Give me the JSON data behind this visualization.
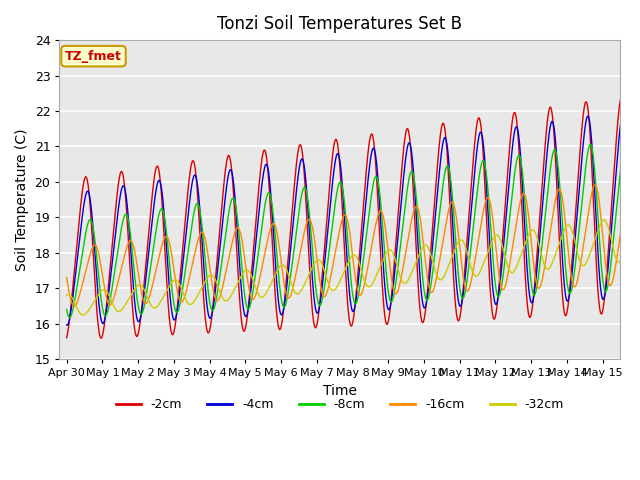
{
  "title": "Tonzi Soil Temperatures Set B",
  "xlabel": "Time",
  "ylabel": "Soil Temperature (C)",
  "ylim": [
    15.0,
    24.0
  ],
  "yticks": [
    15.0,
    16.0,
    17.0,
    18.0,
    19.0,
    20.0,
    21.0,
    22.0,
    23.0,
    24.0
  ],
  "bg_color": "#dcdcdc",
  "plot_bg": "#e8e8e8",
  "annotation_text": "TZ_fmet",
  "annotation_bg": "#ffffcc",
  "annotation_border": "#cc9900",
  "lines": [
    {
      "label": "-2cm",
      "color": "#dd0000",
      "phase": 0.0,
      "base_amp": 2.2,
      "amp_growth": 0.05,
      "base_mean": 17.8,
      "mean_growth": 0.1
    },
    {
      "label": "-4cm",
      "color": "#0000dd",
      "phase": 0.05,
      "base_amp": 1.8,
      "amp_growth": 0.05,
      "base_mean": 17.8,
      "mean_growth": 0.1
    },
    {
      "label": "-8cm",
      "color": "#00cc00",
      "phase": 0.12,
      "base_amp": 1.3,
      "amp_growth": 0.05,
      "base_mean": 17.5,
      "mean_growth": 0.1
    },
    {
      "label": "-16cm",
      "color": "#ff8800",
      "phase": 0.25,
      "base_amp": 0.8,
      "amp_growth": 0.04,
      "base_mean": 17.3,
      "mean_growth": 0.08
    },
    {
      "label": "-32cm",
      "color": "#cccc00",
      "phase": 0.5,
      "base_amp": 0.3,
      "amp_growth": 0.02,
      "base_mean": 16.5,
      "mean_growth": 0.12
    }
  ],
  "n_points": 2000,
  "n_days": 15.5,
  "xlim": [
    -0.2,
    15.5
  ],
  "day_labels": [
    "Apr 30",
    "May 1",
    "May 2",
    "May 3",
    "May 4",
    "May 5",
    "May 6",
    "May 7",
    "May 8",
    "May 9",
    "May 10",
    "May 11",
    "May 12",
    "May 13",
    "May 14",
    "May 15"
  ]
}
